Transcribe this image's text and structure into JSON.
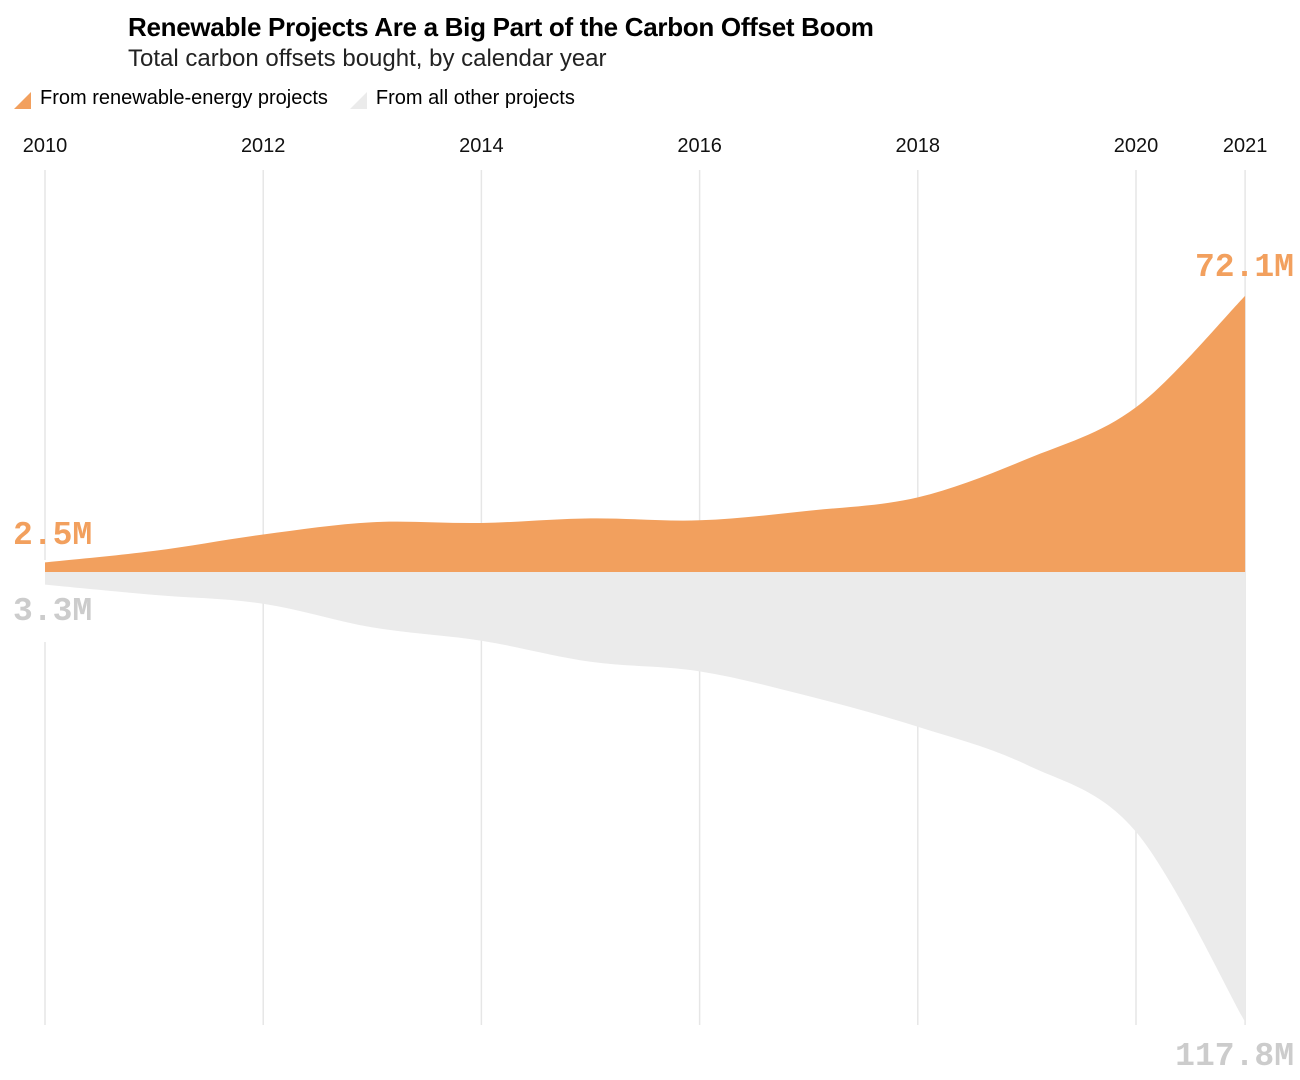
{
  "title": "Renewable Projects Are a Big Part of the Carbon Offset Boom",
  "subtitle": "Total carbon offsets bought, by calendar year",
  "legend": [
    {
      "label": "From renewable-energy projects",
      "color": "#f2a05e"
    },
    {
      "label": "From all other projects",
      "color": "#ebebeb"
    }
  ],
  "chart_data": {
    "type": "area",
    "subtype": "diverging-streamgraph",
    "x": [
      2010,
      2011,
      2012,
      2013,
      2014,
      2015,
      2016,
      2017,
      2018,
      2019,
      2020,
      2021
    ],
    "x_tick_labels": [
      "2010",
      "2012",
      "2014",
      "2016",
      "2018",
      "2020",
      "2021"
    ],
    "series": [
      {
        "name": "From renewable-energy projects",
        "color": "#f2a05e",
        "direction": "up",
        "values": [
          2.5,
          5.5,
          9.8,
          13.0,
          12.8,
          14.0,
          13.5,
          16.0,
          19.5,
          29.5,
          43.0,
          72.1
        ]
      },
      {
        "name": "From all other projects",
        "color": "#ebebeb",
        "direction": "down",
        "values": [
          3.3,
          6.0,
          8.3,
          14.5,
          18.0,
          23.5,
          26.0,
          32.5,
          40.5,
          50.5,
          68.0,
          117.8
        ]
      }
    ],
    "labels": {
      "start_up": "2.5M",
      "end_up": "72.1M",
      "start_down": "3.3M",
      "end_down": "117.8M"
    },
    "label_colors": {
      "up": "#f2a05e",
      "down": "#cccccc"
    },
    "gridline_color": "#e6e6e6",
    "grid": "vertical"
  }
}
